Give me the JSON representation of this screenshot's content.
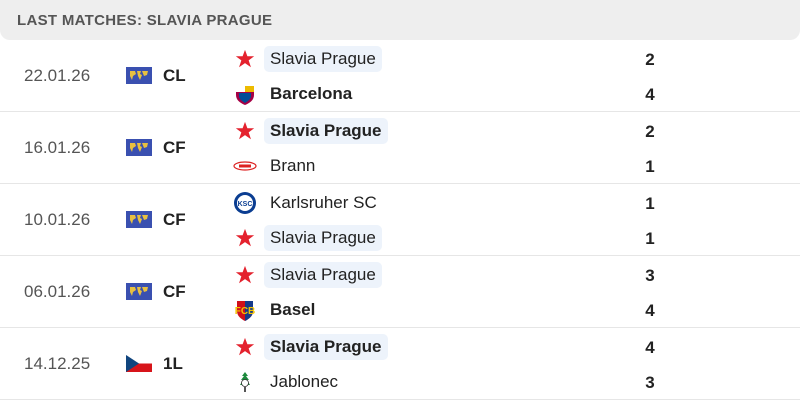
{
  "header": {
    "title": "LAST MATCHES: SLAVIA PRAGUE"
  },
  "colors": {
    "slavia_highlight": "#edf3fb",
    "header_bg": "#eeeeee",
    "world_flag": "#3a50b0",
    "slavia_star": "#e4222e"
  },
  "matches": [
    {
      "date": "22.01.26",
      "competition": "CL",
      "flag": "world-icon",
      "home": {
        "name": "Slavia Prague",
        "logo": "slavia-star-icon",
        "score": "2",
        "bold": false,
        "highlight": true
      },
      "away": {
        "name": "Barcelona",
        "logo": "barcelona-crest-icon",
        "score": "4",
        "bold": true,
        "highlight": false
      }
    },
    {
      "date": "16.01.26",
      "competition": "CF",
      "flag": "world-icon",
      "home": {
        "name": "Slavia Prague",
        "logo": "slavia-star-icon",
        "score": "2",
        "bold": true,
        "highlight": true
      },
      "away": {
        "name": "Brann",
        "logo": "brann-logo-icon",
        "score": "1",
        "bold": false,
        "highlight": false
      }
    },
    {
      "date": "10.01.26",
      "competition": "CF",
      "flag": "world-icon",
      "home": {
        "name": "Karlsruher SC",
        "logo": "ksc-logo-icon",
        "score": "1",
        "bold": false,
        "highlight": false
      },
      "away": {
        "name": "Slavia Prague",
        "logo": "slavia-star-icon",
        "score": "1",
        "bold": false,
        "highlight": true
      }
    },
    {
      "date": "06.01.26",
      "competition": "CF",
      "flag": "world-icon",
      "home": {
        "name": "Slavia Prague",
        "logo": "slavia-star-icon",
        "score": "3",
        "bold": false,
        "highlight": true
      },
      "away": {
        "name": "Basel",
        "logo": "basel-crest-icon",
        "score": "4",
        "bold": true,
        "highlight": false
      }
    },
    {
      "date": "14.12.25",
      "competition": "1L",
      "flag": "czech-flag-icon",
      "home": {
        "name": "Slavia Prague",
        "logo": "slavia-star-icon",
        "score": "4",
        "bold": true,
        "highlight": true
      },
      "away": {
        "name": "Jablonec",
        "logo": "jablonec-logo-icon",
        "score": "3",
        "bold": false,
        "highlight": false
      }
    }
  ]
}
